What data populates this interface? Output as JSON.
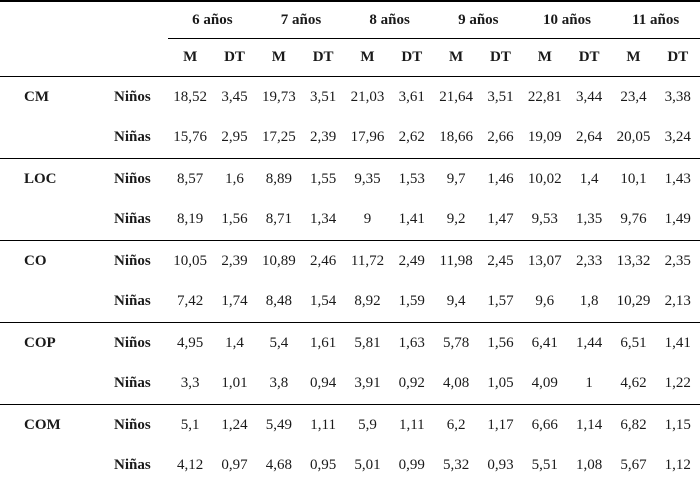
{
  "table": {
    "age_headers": [
      "6 años",
      "7 años",
      "8 años",
      "9 años",
      "10 años",
      "11 años"
    ],
    "stat_headers": [
      "M",
      "DT"
    ],
    "groups": [
      {
        "label": "CM",
        "rows": [
          {
            "label": "Niños",
            "values": [
              "18,52",
              "3,45",
              "19,73",
              "3,51",
              "21,03",
              "3,61",
              "21,64",
              "3,51",
              "22,81",
              "3,44",
              "23,4",
              "3,38"
            ]
          },
          {
            "label": "Niñas",
            "values": [
              "15,76",
              "2,95",
              "17,25",
              "2,39",
              "17,96",
              "2,62",
              "18,66",
              "2,66",
              "19,09",
              "2,64",
              "20,05",
              "3,24"
            ]
          }
        ]
      },
      {
        "label": "LOC",
        "rows": [
          {
            "label": "Niños",
            "values": [
              "8,57",
              "1,6",
              "8,89",
              "1,55",
              "9,35",
              "1,53",
              "9,7",
              "1,46",
              "10,02",
              "1,4",
              "10,1",
              "1,43"
            ]
          },
          {
            "label": "Niñas",
            "values": [
              "8,19",
              "1,56",
              "8,71",
              "1,34",
              "9",
              "1,41",
              "9,2",
              "1,47",
              "9,53",
              "1,35",
              "9,76",
              "1,49"
            ]
          }
        ]
      },
      {
        "label": "CO",
        "rows": [
          {
            "label": "Niños",
            "values": [
              "10,05",
              "2,39",
              "10,89",
              "2,46",
              "11,72",
              "2,49",
              "11,98",
              "2,45",
              "13,07",
              "2,33",
              "13,32",
              "2,35"
            ]
          },
          {
            "label": "Niñas",
            "values": [
              "7,42",
              "1,74",
              "8,48",
              "1,54",
              "8,92",
              "1,59",
              "9,4",
              "1,57",
              "9,6",
              "1,8",
              "10,29",
              "2,13"
            ]
          }
        ]
      },
      {
        "label": "COP",
        "rows": [
          {
            "label": "Niños",
            "values": [
              "4,95",
              "1,4",
              "5,4",
              "1,61",
              "5,81",
              "1,63",
              "5,78",
              "1,56",
              "6,41",
              "1,44",
              "6,51",
              "1,41"
            ]
          },
          {
            "label": "Niñas",
            "values": [
              "3,3",
              "1,01",
              "3,8",
              "0,94",
              "3,91",
              "0,92",
              "4,08",
              "1,05",
              "4,09",
              "1",
              "4,62",
              "1,22"
            ]
          }
        ]
      },
      {
        "label": "COM",
        "rows": [
          {
            "label": "Niños",
            "values": [
              "5,1",
              "1,24",
              "5,49",
              "1,11",
              "5,9",
              "1,11",
              "6,2",
              "1,17",
              "6,66",
              "1,14",
              "6,82",
              "1,15"
            ]
          },
          {
            "label": "Niñas",
            "values": [
              "4,12",
              "0,97",
              "4,68",
              "0,95",
              "5,01",
              "0,99",
              "5,32",
              "0,93",
              "5,51",
              "1,08",
              "5,67",
              "1,12"
            ]
          }
        ]
      }
    ]
  }
}
